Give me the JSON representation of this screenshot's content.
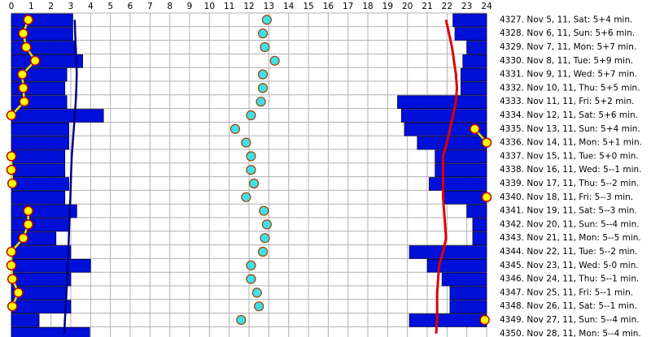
{
  "chart_data": {
    "type": "sleep-log",
    "xlim": [
      0,
      24
    ],
    "xticks": [
      0,
      1,
      2,
      3,
      4,
      5,
      6,
      7,
      8,
      9,
      10,
      11,
      12,
      13,
      14,
      15,
      16,
      17,
      18,
      19,
      20,
      21,
      22,
      23,
      24
    ],
    "grid": true,
    "categories": [
      "4327. Nov 5, 11, Sat: 5+4 min.",
      "4328. Nov 6, 11, Sun: 5+6 min.",
      "4329. Nov 7, 11, Mon: 5+7 min.",
      "4330. Nov 8, 11, Tue: 5+9 min.",
      "4331. Nov 9, 11, Wed: 5+7 min.",
      "4332. Nov 10, 11, Thu: 5+5 min.",
      "4333. Nov 11, 11, Fri: 5+2 min.",
      "4334. Nov 12, 11, Sat: 5+6 min.",
      "4335. Nov 13, 11, Sun: 5+4 min.",
      "4336. Nov 14, 11, Mon: 5+1 min.",
      "4337. Nov 15, 11, Tue: 5+0 min.",
      "4338. Nov 16, 11, Wed: 5--1 min.",
      "4339. Nov 17, 11, Thu: 5--2 min.",
      "4340. Nov 18, 11, Fri: 5--3 min.",
      "4341. Nov 19, 11, Sat: 5--3 min.",
      "4342. Nov 20, 11, Sun: 5--4 min.",
      "4343. Nov 21, 11, Mon: 5--5 min.",
      "4344. Nov 22, 11, Tue: 5--2 min.",
      "4345. Nov 23, 11, Wed: 5-0 min.",
      "4346. Nov 24, 11, Thu: 5--1 min.",
      "4347. Nov 25, 11, Fri: 5--1 min.",
      "4348. Nov 26, 11, Sat: 5--1 min.",
      "4349. Nov 27, 11, Sun: 5--4 min.",
      "4350. Nov 28, 11, Mon: 5--4 min."
    ],
    "morning_bars": {
      "color": "#0010d8",
      "values": [
        3.1,
        3.1,
        3.2,
        3.6,
        2.8,
        2.7,
        2.8,
        4.65,
        2.9,
        2.9,
        2.7,
        2.7,
        2.9,
        2.7,
        3.3,
        2.9,
        2.25,
        3.0,
        4.0,
        3.0,
        2.8,
        3.0,
        1.4,
        3.95
      ]
    },
    "evening_bars": {
      "color": "#0010d8",
      "values": [
        22.3,
        22.4,
        23.0,
        22.8,
        22.7,
        22.7,
        19.5,
        19.7,
        19.85,
        20.5,
        21.4,
        21.4,
        21.1,
        21.8,
        23.0,
        23.3,
        23.3,
        20.1,
        21.0,
        21.75,
        22.15,
        22.15,
        20.1,
        null
      ]
    },
    "yellow_dots": {
      "color": "#ffff00",
      "values": [
        0.85,
        0.6,
        0.75,
        1.2,
        0.55,
        0.6,
        0.65,
        0,
        23.4,
        24,
        0,
        0,
        0.05,
        24,
        0.85,
        0.85,
        0.6,
        0,
        0,
        0.05,
        0.35,
        0.05,
        23.9,
        null
      ]
    },
    "cyan_dots": {
      "color": "#40e0e8",
      "values": [
        12.9,
        12.7,
        12.8,
        13.3,
        12.7,
        12.7,
        12.6,
        12.1,
        11.3,
        11.85,
        12.1,
        12.1,
        12.25,
        11.85,
        12.75,
        12.9,
        12.8,
        12.7,
        12.1,
        12.1,
        12.4,
        12.5,
        11.6,
        null
      ]
    },
    "blue_line": {
      "color": "#000080",
      "values": [
        3.2,
        3.22,
        3.25,
        3.28,
        3.3,
        3.28,
        3.25,
        3.2,
        3.15,
        3.1,
        3.05,
        3.02,
        3.0,
        2.98,
        2.95,
        2.92,
        2.9,
        2.88,
        2.85,
        2.82,
        2.78,
        2.75,
        2.7,
        2.68
      ]
    },
    "red_line": {
      "color": "#e00000",
      "values": [
        21.95,
        22.1,
        22.25,
        22.35,
        22.45,
        22.5,
        22.45,
        22.3,
        22.15,
        22.0,
        21.8,
        21.8,
        21.8,
        21.8,
        21.85,
        21.9,
        21.95,
        21.8,
        21.6,
        21.55,
        21.5,
        21.5,
        21.5,
        21.45
      ]
    }
  }
}
